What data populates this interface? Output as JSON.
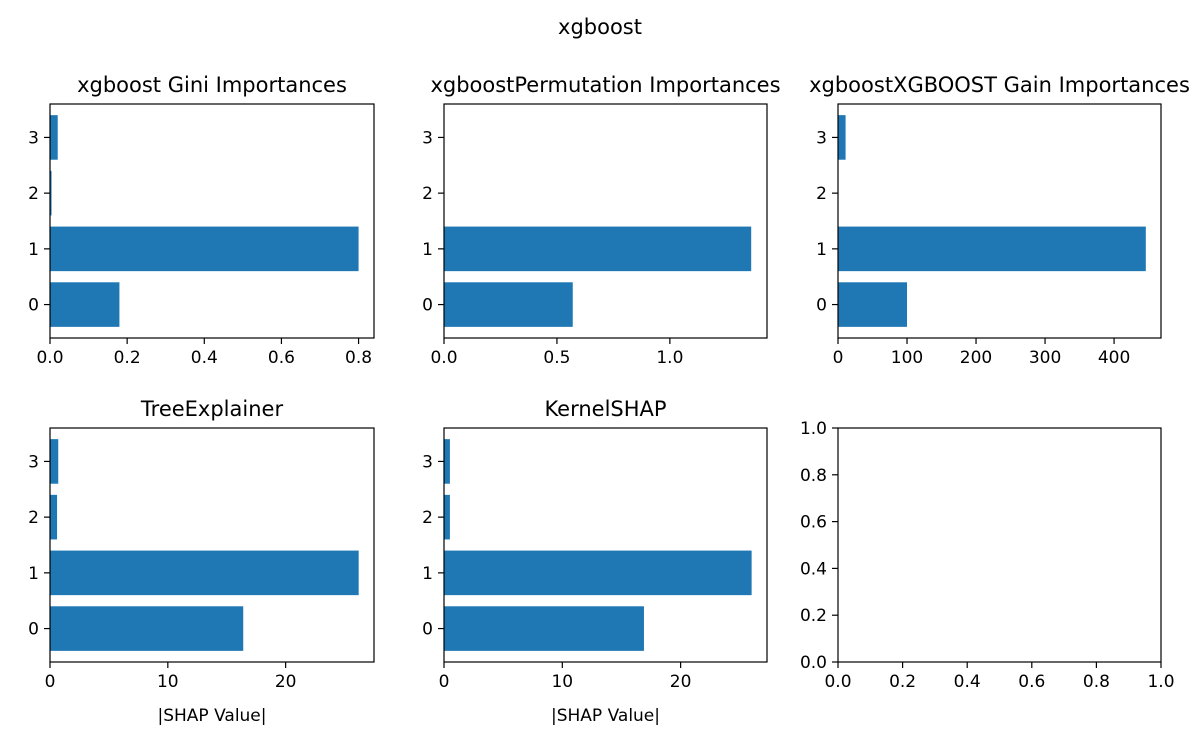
{
  "figure": {
    "suptitle": "xgboost"
  },
  "style": {
    "bar_color": "#1f77b4",
    "axis_color": "#000000",
    "background": "#ffffff"
  },
  "chart_data": [
    {
      "type": "bar",
      "orientation": "horizontal",
      "title": "xgboost Gini Importances",
      "xlabel": "",
      "ylabel": "",
      "categories": [
        "0",
        "1",
        "2",
        "3"
      ],
      "values": [
        0.18,
        0.8,
        0.004,
        0.02
      ],
      "xlim": [
        0,
        0.84
      ],
      "xticks": [
        0.0,
        0.2,
        0.4,
        0.6,
        0.8
      ],
      "xtick_labels": [
        "0.0",
        "0.2",
        "0.4",
        "0.6",
        "0.8"
      ],
      "grid": false
    },
    {
      "type": "bar",
      "orientation": "horizontal",
      "title": "xgboostPermutation Importances",
      "xlabel": "",
      "ylabel": "",
      "categories": [
        "0",
        "1",
        "2",
        "3"
      ],
      "values": [
        0.57,
        1.36,
        0,
        0
      ],
      "xlim": [
        0,
        1.43
      ],
      "xticks": [
        0.0,
        0.5,
        1.0
      ],
      "xtick_labels": [
        "0.0",
        "0.5",
        "1.0"
      ],
      "grid": false
    },
    {
      "type": "bar",
      "orientation": "horizontal",
      "title": "xgboostXGBOOST Gain Importances",
      "xlabel": "",
      "ylabel": "",
      "categories": [
        "0",
        "1",
        "2",
        "3"
      ],
      "values": [
        100,
        446,
        0,
        11
      ],
      "xlim": [
        0,
        468
      ],
      "xticks": [
        0,
        100,
        200,
        300,
        400
      ],
      "xtick_labels": [
        "0",
        "100",
        "200",
        "300",
        "400"
      ],
      "grid": false
    },
    {
      "type": "bar",
      "orientation": "horizontal",
      "title": "TreeExplainer",
      "xlabel": "|SHAP Value|",
      "ylabel": "",
      "categories": [
        "0",
        "1",
        "2",
        "3"
      ],
      "values": [
        16.4,
        26.2,
        0.6,
        0.7
      ],
      "xlim": [
        0,
        27.5
      ],
      "xticks": [
        0,
        10,
        20
      ],
      "xtick_labels": [
        "0",
        "10",
        "20"
      ],
      "grid": false
    },
    {
      "type": "bar",
      "orientation": "horizontal",
      "title": "KernelSHAP",
      "xlabel": "|SHAP Value|",
      "ylabel": "",
      "categories": [
        "0",
        "1",
        "2",
        "3"
      ],
      "values": [
        16.9,
        26.0,
        0.5,
        0.5
      ],
      "xlim": [
        0,
        27.3
      ],
      "xticks": [
        0,
        10,
        20
      ],
      "xtick_labels": [
        "0",
        "10",
        "20"
      ],
      "grid": false
    },
    {
      "type": "empty",
      "title": "",
      "xlim": [
        0,
        1
      ],
      "ylim": [
        0,
        1
      ],
      "xticks": [
        0.0,
        0.2,
        0.4,
        0.6,
        0.8,
        1.0
      ],
      "xtick_labels": [
        "0.0",
        "0.2",
        "0.4",
        "0.6",
        "0.8",
        "1.0"
      ],
      "yticks": [
        0.0,
        0.2,
        0.4,
        0.6,
        0.8,
        1.0
      ],
      "ytick_labels": [
        "0.0",
        "0.2",
        "0.4",
        "0.6",
        "0.8",
        "1.0"
      ]
    }
  ]
}
